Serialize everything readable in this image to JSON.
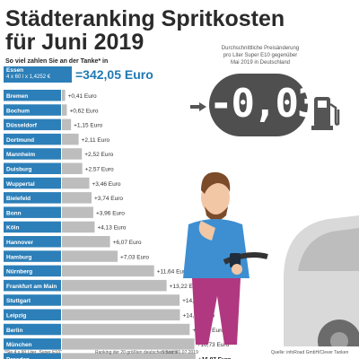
{
  "title_line1": "Städteranking Spritkosten",
  "title_line2": "für Juni 2019",
  "subtitle": "So viel zahlen Sie an der Tanke* in",
  "essen": {
    "city": "Essen",
    "formula": "4 x 60 l x 1,4252 €",
    "total": "=342,05 Euro"
  },
  "price_note": {
    "line1": "Durchschnittliche Preisänderung",
    "line2": "pro Liter Super E10 gegenüber",
    "line3": "Mai 2019 in Deutschland"
  },
  "price_change": "-0,03",
  "colors": {
    "accent": "#2c7fb8",
    "accent_dark": "#1f78b4",
    "bar_gray": "#bdbdbd",
    "display_bg": "#4f4f4f"
  },
  "icons": [
    "arrow-right-icon",
    "fuel-pump-icon",
    "person-illustration",
    "car-illustration"
  ],
  "chart_data": {
    "type": "bar",
    "orientation": "horizontal",
    "unit": "Euro",
    "categories": [
      "Bremen",
      "Bochum",
      "Düsseldorf",
      "Dortmund",
      "Mannheim",
      "Duisburg",
      "Wuppertal",
      "Bielefeld",
      "Bonn",
      "Köln",
      "Hannover",
      "Hamburg",
      "Nürnberg",
      "Frankfurt am Main",
      "Stuttgart",
      "Leipzig",
      "Berlin",
      "München",
      "Dresden"
    ],
    "values": [
      0.41,
      0.62,
      1.15,
      2.11,
      2.52,
      2.57,
      3.46,
      3.74,
      3.96,
      4.13,
      6.07,
      7.03,
      11.64,
      13.22,
      14.86,
      14.9,
      16.13,
      16.73,
      16.87
    ],
    "value_labels": [
      "+0,41 Euro",
      "+0,62 Euro",
      "+1,15 Euro",
      "+2,11 Euro",
      "+2,52 Euro",
      "+2,57 Euro",
      "+3,46 Euro",
      "+3,74 Euro",
      "+3,96 Euro",
      "+4,13 Euro",
      "+6,07 Euro",
      "+7,03 Euro",
      "+11,64 Euro",
      "+13,22 Euro",
      "+14,86 Euro",
      "+14,90 Euro",
      "+16,13 Euro",
      "+16,73 Euro",
      "+16,87 Euro"
    ],
    "xlim": [
      0,
      17
    ]
  },
  "footer": {
    "note": "*Sie 4 x 60 Liter „Super E10\"",
    "ranking": "Ranking der 20 größten deutschen Städte",
    "stand": "Stand: 01.07.2019",
    "source": "Quelle: infoRoad GmbH/Clever Tanken"
  }
}
